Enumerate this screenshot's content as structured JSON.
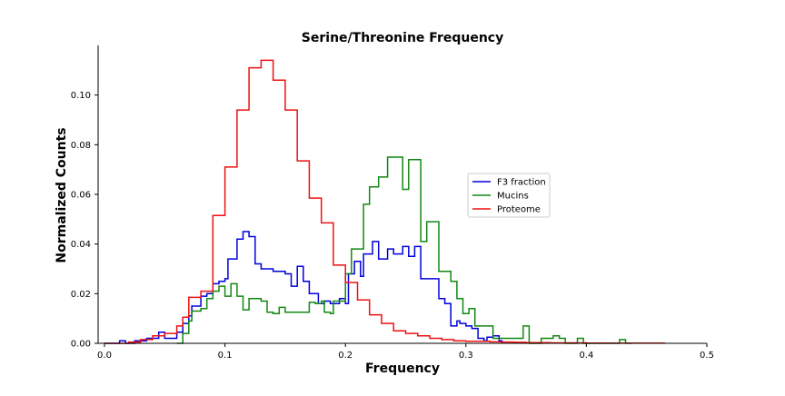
{
  "chart_data": {
    "type": "line",
    "title": "Serine/Threonine Frequency",
    "xlabel": "Frequency",
    "ylabel": "Normalized Counts",
    "xlim": [
      0.0,
      0.5
    ],
    "ylim": [
      0.0,
      0.12
    ],
    "x_ticks": [
      0.0,
      0.1,
      0.2,
      0.3,
      0.4,
      0.5
    ],
    "x_tick_labels": [
      "0.0",
      "0.1",
      "0.2",
      "0.3",
      "0.4",
      "0.5"
    ],
    "y_ticks": [
      0.0,
      0.02,
      0.04,
      0.06,
      0.08,
      0.1
    ],
    "y_tick_labels": [
      "0.00",
      "0.02",
      "0.04",
      "0.06",
      "0.08",
      "0.10"
    ],
    "grid": false,
    "legend_position": "center-right",
    "series": [
      {
        "name": "F3 fraction",
        "color": "#0000dd",
        "style": "step",
        "x": [
          0.0,
          0.0125,
          0.0175,
          0.025,
          0.035,
          0.0425,
          0.045,
          0.05,
          0.055,
          0.06,
          0.065,
          0.07,
          0.0725,
          0.08,
          0.085,
          0.09,
          0.0925,
          0.095,
          0.1,
          0.1025,
          0.11,
          0.115,
          0.12,
          0.125,
          0.13,
          0.14,
          0.145,
          0.15,
          0.155,
          0.16,
          0.165,
          0.17,
          0.1775,
          0.1825,
          0.1875,
          0.195,
          0.2,
          0.2025,
          0.2075,
          0.2125,
          0.215,
          0.2225,
          0.2275,
          0.235,
          0.24,
          0.2475,
          0.2525,
          0.2575,
          0.2625,
          0.2725,
          0.2775,
          0.2825,
          0.2875,
          0.2925,
          0.295,
          0.3,
          0.305,
          0.31,
          0.315,
          0.3175,
          0.3225,
          0.3275,
          0.33
        ],
        "y": [
          0.0,
          0.001,
          0.0,
          0.001,
          0.002,
          0.002,
          0.0045,
          0.002,
          0.002,
          0.0045,
          0.008,
          0.011,
          0.015,
          0.019,
          0.02,
          0.024,
          0.024,
          0.025,
          0.026,
          0.034,
          0.042,
          0.045,
          0.043,
          0.032,
          0.03,
          0.029,
          0.029,
          0.028,
          0.023,
          0.031,
          0.025,
          0.02,
          0.016,
          0.017,
          0.016,
          0.018,
          0.016,
          0.028,
          0.033,
          0.027,
          0.036,
          0.041,
          0.034,
          0.038,
          0.036,
          0.039,
          0.035,
          0.039,
          0.026,
          0.026,
          0.018,
          0.016,
          0.007,
          0.009,
          0.008,
          0.007,
          0.006,
          0.002,
          0.001,
          0.0025,
          0.003,
          0.001,
          0.0
        ]
      },
      {
        "name": "Mucins",
        "color": "#118811",
        "style": "step",
        "x": [
          0.06,
          0.065,
          0.07,
          0.0725,
          0.08,
          0.085,
          0.09,
          0.095,
          0.1,
          0.105,
          0.11,
          0.115,
          0.12,
          0.125,
          0.13,
          0.135,
          0.14,
          0.145,
          0.15,
          0.155,
          0.16,
          0.165,
          0.17,
          0.175,
          0.18,
          0.1825,
          0.1875,
          0.19,
          0.195,
          0.2,
          0.205,
          0.21,
          0.215,
          0.22,
          0.225,
          0.2275,
          0.235,
          0.24,
          0.2475,
          0.2525,
          0.2575,
          0.2625,
          0.2675,
          0.2725,
          0.2775,
          0.2825,
          0.2875,
          0.2925,
          0.2975,
          0.3025,
          0.3075,
          0.3125,
          0.3175,
          0.3225,
          0.3275,
          0.3325,
          0.3375,
          0.3425,
          0.3475,
          0.3525,
          0.3575,
          0.3625,
          0.3675,
          0.3725,
          0.3775,
          0.3825,
          0.3875,
          0.3925,
          0.3975,
          0.4025,
          0.4075,
          0.4125,
          0.4175,
          0.4225,
          0.4275,
          0.4325,
          0.4375
        ],
        "y": [
          0.0,
          0.004,
          0.009,
          0.013,
          0.014,
          0.018,
          0.021,
          0.023,
          0.019,
          0.024,
          0.019,
          0.0135,
          0.018,
          0.018,
          0.017,
          0.0125,
          0.012,
          0.0145,
          0.0125,
          0.0125,
          0.0125,
          0.0125,
          0.0165,
          0.016,
          0.017,
          0.0125,
          0.012,
          0.017,
          0.017,
          0.028,
          0.038,
          0.038,
          0.056,
          0.063,
          0.063,
          0.067,
          0.075,
          0.075,
          0.062,
          0.074,
          0.074,
          0.041,
          0.049,
          0.049,
          0.029,
          0.029,
          0.025,
          0.018,
          0.012,
          0.014,
          0.007,
          0.007,
          0.007,
          0.002,
          0.002,
          0.002,
          0.002,
          0.002,
          0.007,
          0.0,
          0.0,
          0.002,
          0.002,
          0.003,
          0.002,
          0.0,
          0.0,
          0.002,
          0.0,
          0.0,
          0.0,
          0.0,
          0.0,
          0.0,
          0.0015,
          0.0,
          0.0
        ]
      },
      {
        "name": "Proteome",
        "color": "#ee1111",
        "style": "step",
        "x": [
          0.0,
          0.01,
          0.02,
          0.03,
          0.04,
          0.05,
          0.06,
          0.065,
          0.07,
          0.08,
          0.09,
          0.1,
          0.11,
          0.12,
          0.13,
          0.14,
          0.15,
          0.16,
          0.17,
          0.18,
          0.19,
          0.2,
          0.21,
          0.22,
          0.23,
          0.24,
          0.25,
          0.26,
          0.27,
          0.28,
          0.29,
          0.3,
          0.31,
          0.32,
          0.33,
          0.34,
          0.35,
          0.36,
          0.37,
          0.38,
          0.39,
          0.4,
          0.41,
          0.42,
          0.43,
          0.44,
          0.45,
          0.46,
          0.465
        ],
        "y": [
          0.0,
          0.0,
          0.0005,
          0.0015,
          0.003,
          0.004,
          0.007,
          0.0105,
          0.0185,
          0.021,
          0.0515,
          0.071,
          0.094,
          0.111,
          0.114,
          0.106,
          0.094,
          0.0735,
          0.0585,
          0.0485,
          0.0315,
          0.0245,
          0.0175,
          0.0115,
          0.008,
          0.005,
          0.004,
          0.003,
          0.002,
          0.0015,
          0.001,
          0.0008,
          0.0008,
          0.0006,
          0.0005,
          0.0004,
          0.0003,
          0.0003,
          0.0002,
          0.0002,
          0.0002,
          0.0001,
          0.0001,
          0.0001,
          0.0001,
          0.0001,
          0.0001,
          0.0001,
          0.0
        ]
      }
    ]
  }
}
